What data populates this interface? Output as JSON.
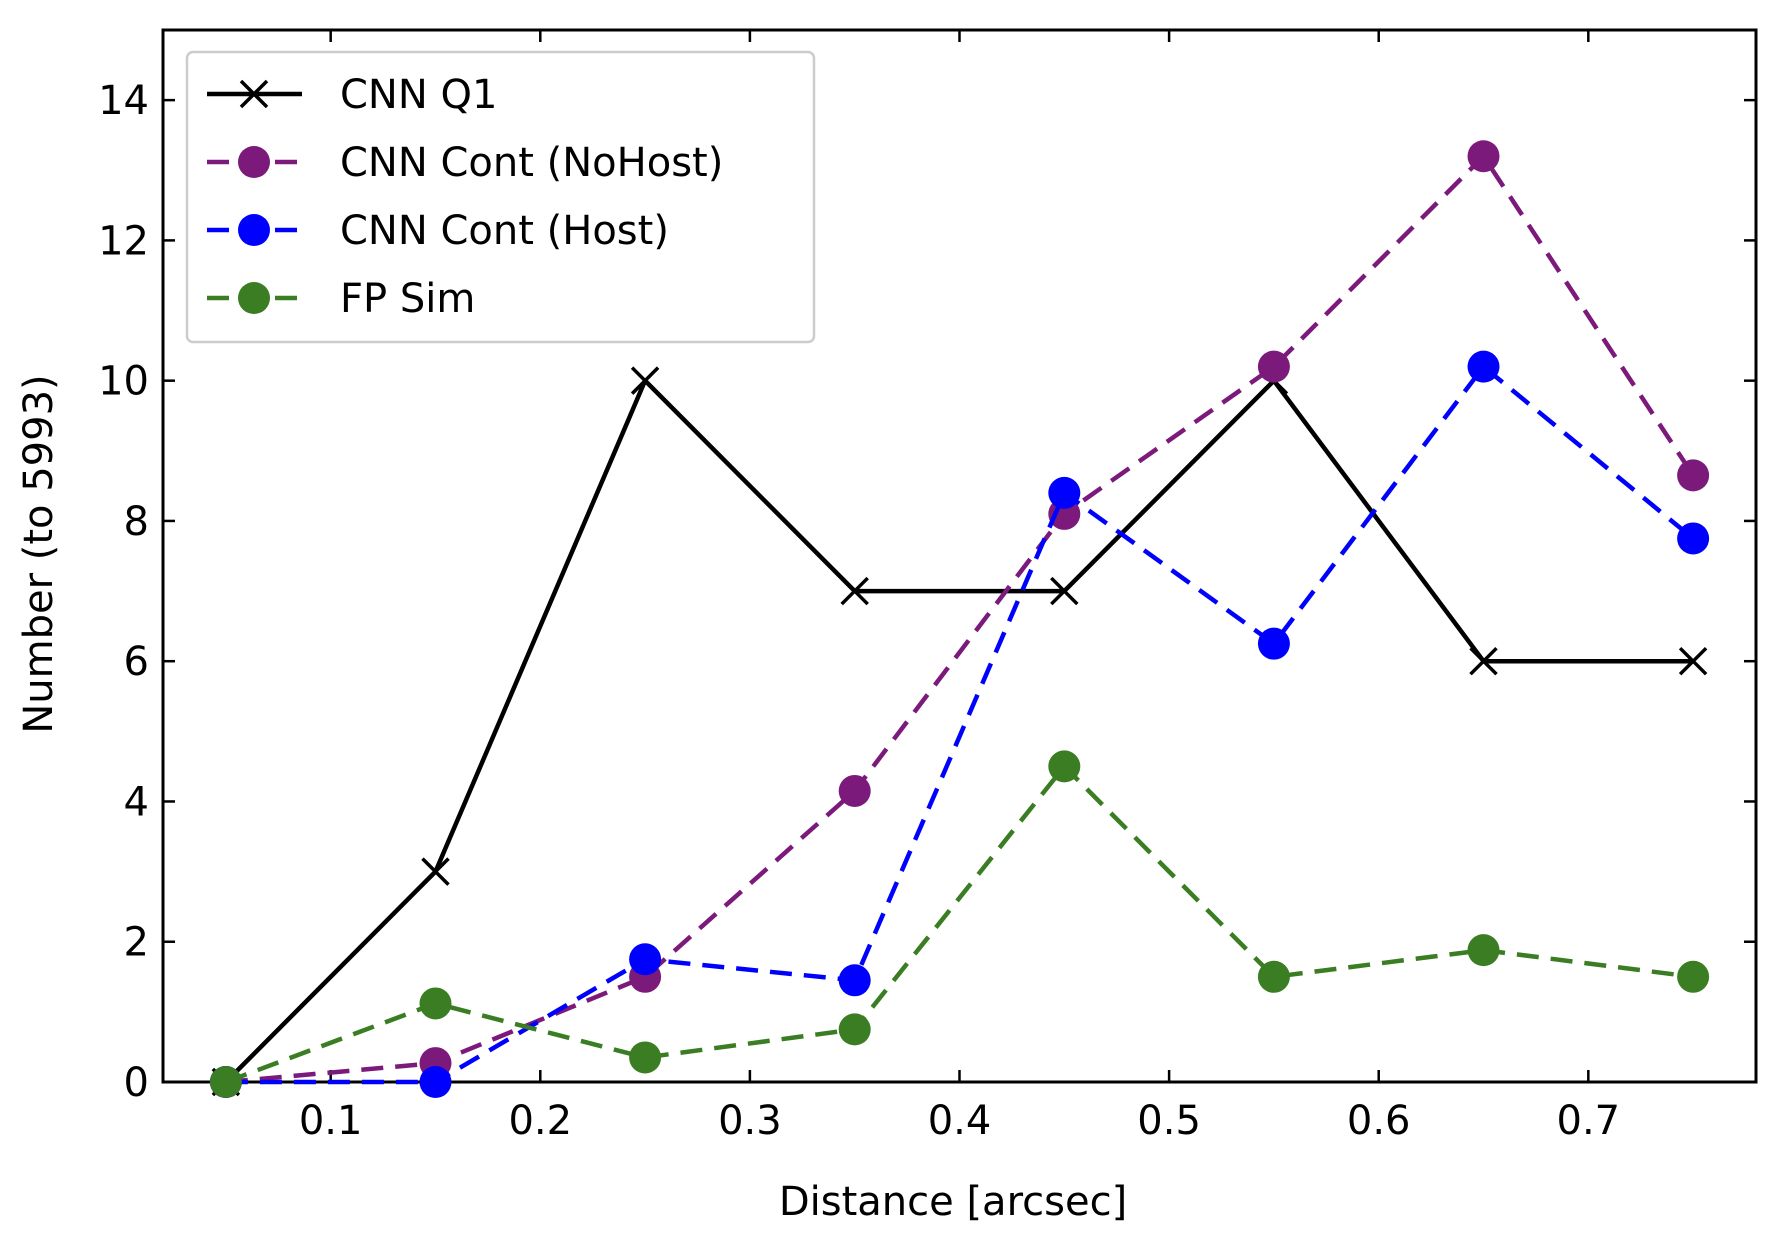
{
  "chart_data": {
    "type": "line",
    "xlabel": "Distance [arcsec]",
    "ylabel": "Number (to 5993)",
    "xlim": [
      0.02,
      0.78
    ],
    "ylim": [
      0,
      15
    ],
    "xticks": [
      0.1,
      0.2,
      0.3,
      0.4,
      0.5,
      0.6,
      0.7
    ],
    "xtick_labels": [
      "0.1",
      "0.2",
      "0.3",
      "0.4",
      "0.5",
      "0.6",
      "0.7"
    ],
    "yticks": [
      0,
      2,
      4,
      6,
      8,
      10,
      12,
      14
    ],
    "ytick_labels": [
      "0",
      "2",
      "4",
      "6",
      "8",
      "10",
      "12",
      "14"
    ],
    "grid": false,
    "ticks_direction": "in",
    "legend_position": "top-left",
    "x": [
      0.05,
      0.15,
      0.25,
      0.35,
      0.45,
      0.55,
      0.65,
      0.75
    ],
    "series": [
      {
        "name": "CNN Q1",
        "values": [
          0,
          3,
          10,
          7,
          7,
          10,
          6,
          6
        ],
        "color": "#000000",
        "marker": "x",
        "linestyle": "solid"
      },
      {
        "name": "CNN Cont (NoHost)",
        "values": [
          0,
          0.27,
          1.5,
          4.15,
          8.1,
          10.2,
          13.2,
          8.65
        ],
        "color": "#7b1a7b",
        "marker": "circle",
        "linestyle": "dashed"
      },
      {
        "name": "CNN Cont (Host)",
        "values": [
          0,
          0,
          1.75,
          1.45,
          8.4,
          6.25,
          10.2,
          7.75
        ],
        "color": "#0000ff",
        "marker": "circle",
        "linestyle": "dashed"
      },
      {
        "name": "FP Sim",
        "values": [
          0,
          1.12,
          0.35,
          0.75,
          4.5,
          1.5,
          1.88,
          1.5
        ],
        "color": "#3a7d22",
        "marker": "circle",
        "linestyle": "dashed"
      }
    ]
  }
}
